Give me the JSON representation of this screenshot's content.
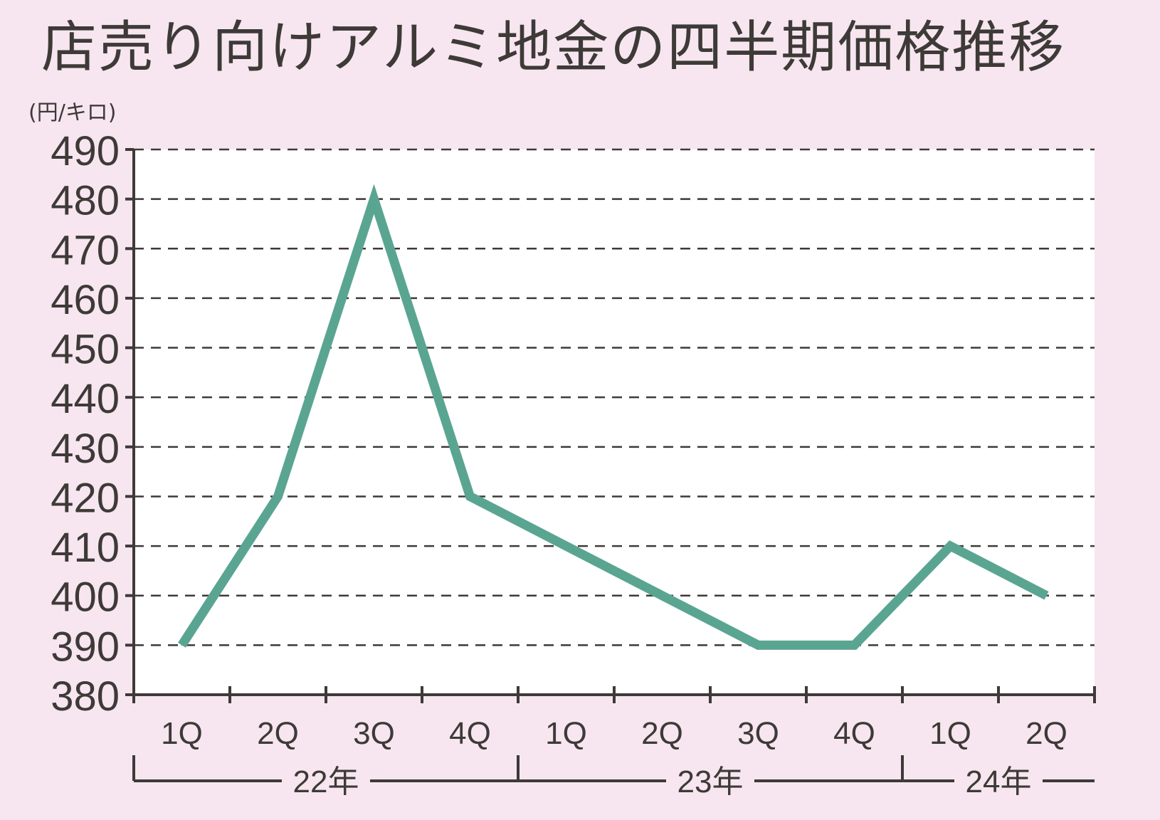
{
  "chart_data": {
    "type": "line",
    "title": "店売り向けアルミ地金の四半期価格推移",
    "ylabel": "(円/キロ)",
    "xlabel": "",
    "ylim": [
      380,
      490
    ],
    "yticks": [
      380,
      390,
      400,
      410,
      420,
      430,
      440,
      450,
      460,
      470,
      480,
      490
    ],
    "categories": [
      "1Q",
      "2Q",
      "3Q",
      "4Q",
      "1Q",
      "2Q",
      "3Q",
      "4Q",
      "1Q",
      "2Q"
    ],
    "groups": [
      {
        "label": "22年",
        "count": 4
      },
      {
        "label": "23年",
        "count": 4
      },
      {
        "label": "24年",
        "count": 2
      }
    ],
    "series": [
      {
        "values": [
          390,
          420,
          480,
          420,
          410,
          400,
          390,
          390,
          410,
          400
        ]
      }
    ],
    "grid": true,
    "legend": "none",
    "colors": {
      "background": "#f7e6ef",
      "plot_background": "#ffffff",
      "line": "#5aa592",
      "axis": "#3d3a37",
      "grid": "#3d3a37"
    }
  }
}
